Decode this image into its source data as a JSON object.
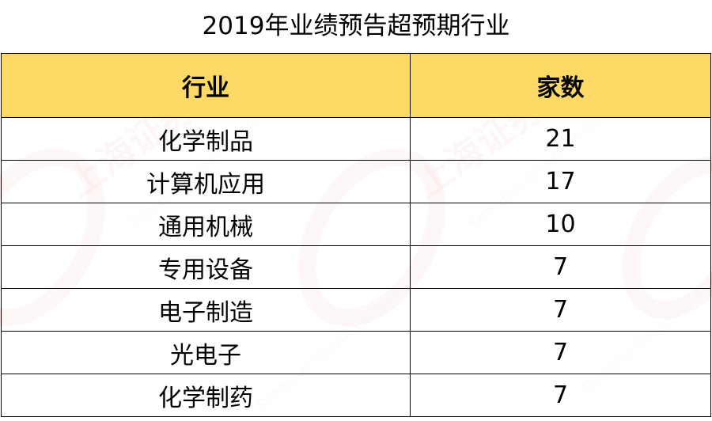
{
  "title": "2019年业绩预告超预期行业",
  "table": {
    "headers": [
      "行业",
      "家数"
    ],
    "rows": [
      {
        "industry": "化学制品",
        "count": "21"
      },
      {
        "industry": "计算机应用",
        "count": "17"
      },
      {
        "industry": "通用机械",
        "count": "10"
      },
      {
        "industry": "专用设备",
        "count": "7"
      },
      {
        "industry": "电子制造",
        "count": "7"
      },
      {
        "industry": "光电子",
        "count": "7"
      },
      {
        "industry": "化学制药",
        "count": "7"
      }
    ]
  },
  "watermark": {
    "logo_text": "上海证券报",
    "english_text": "Shanghai Securities News",
    "color": "#e8494f"
  }
}
